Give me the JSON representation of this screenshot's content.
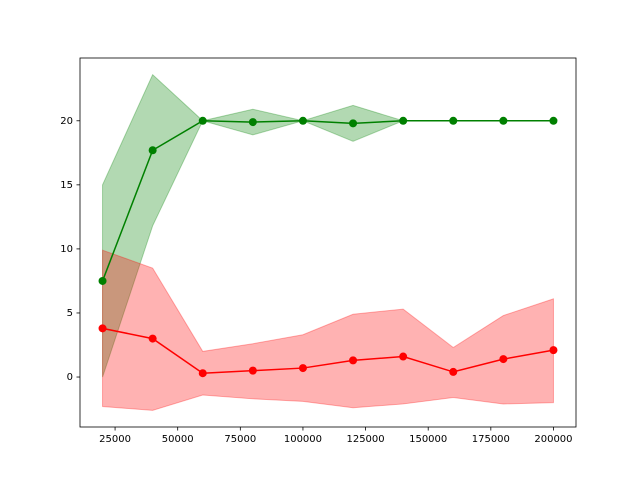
{
  "chart_data": {
    "type": "line",
    "x": [
      20000,
      40000,
      60000,
      80000,
      100000,
      120000,
      140000,
      160000,
      180000,
      200000
    ],
    "xlim": [
      11000,
      209000
    ],
    "ylim": [
      -3.9,
      24.9
    ],
    "xticks": [
      25000,
      50000,
      75000,
      100000,
      125000,
      150000,
      175000,
      200000
    ],
    "yticks": [
      0,
      5,
      10,
      15,
      20
    ],
    "band_opacity": 0.3,
    "series": [
      {
        "color": "#008000",
        "values": [
          7.5,
          17.7,
          20,
          19.9,
          20,
          19.8,
          20,
          20,
          20,
          20
        ],
        "lower": [
          0,
          11.8,
          20,
          18.9,
          20,
          18.4,
          20,
          20,
          20,
          20
        ],
        "upper": [
          15,
          23.6,
          20,
          20.9,
          20,
          21.2,
          20,
          20,
          20,
          20
        ]
      },
      {
        "color": "#ff0000",
        "values": [
          3.8,
          3.0,
          0.3,
          0.5,
          0.7,
          1.3,
          1.6,
          0.4,
          1.4,
          2.1
        ],
        "lower": [
          -2.3,
          -2.6,
          -1.4,
          -1.7,
          -1.9,
          -2.4,
          -2.1,
          -1.6,
          -2.1,
          -2.0
        ],
        "upper": [
          9.9,
          8.5,
          2.0,
          2.6,
          3.3,
          4.9,
          5.3,
          2.3,
          4.8,
          6.1
        ]
      }
    ]
  }
}
